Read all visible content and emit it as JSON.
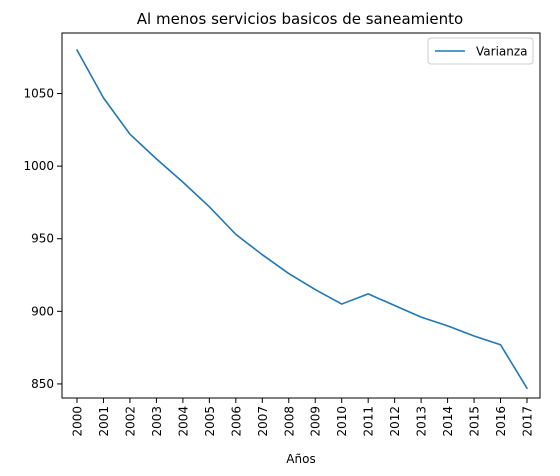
{
  "chart_data": {
    "type": "line",
    "title": "Al menos servicios basicos de saneamiento",
    "xlabel": "Años",
    "ylabel": "",
    "x": [
      "2000",
      "2001",
      "2002",
      "2003",
      "2004",
      "2005",
      "2006",
      "2007",
      "2008",
      "2009",
      "2010",
      "2011",
      "2012",
      "2013",
      "2014",
      "2015",
      "2016",
      "2017"
    ],
    "series": [
      {
        "name": "Varianza",
        "color": "#1f77b4",
        "values": [
          1080,
          1047,
          1022,
          1005,
          989,
          972,
          953,
          939,
          926,
          915,
          905,
          912,
          904,
          896,
          890,
          883,
          877,
          847
        ]
      }
    ],
    "yticks": [
      "850",
      "900",
      "950",
      "1000",
      "1050"
    ],
    "ylim": [
      840.3,
      1091.7
    ],
    "grid": false,
    "legend": "top-right"
  }
}
